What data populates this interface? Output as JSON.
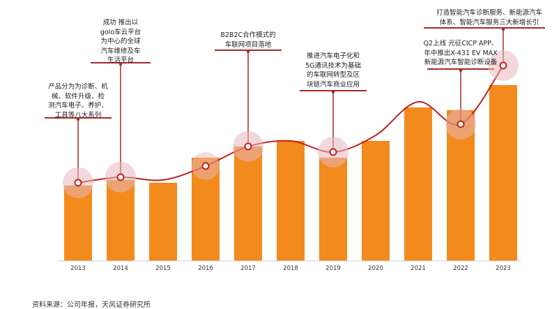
{
  "chart_data": {
    "type": "bar",
    "categories": [
      "2013",
      "2014",
      "2015",
      "2016",
      "2017",
      "2018",
      "2019",
      "2020",
      "2021",
      "2022",
      "2023"
    ],
    "values": [
      27,
      29,
      28,
      37,
      41,
      43,
      37,
      43,
      55,
      54,
      63
    ],
    "trend_line": [
      28,
      30,
      29,
      34,
      41,
      43,
      39,
      45,
      57,
      49,
      70
    ],
    "title": "",
    "xlabel": "",
    "ylabel": "",
    "ylim": [
      0,
      75
    ],
    "grid": false,
    "legend": "none",
    "annotations": [
      {
        "year": "2013",
        "text": "产品分为为诊断、机\n械、软件升级、检\n测汽车电子、养护、\n工具等八大系列"
      },
      {
        "year": "2014",
        "text": "成功   推出以\ngolo车云平台\n为中心的全球\n汽车维修及车\n生活平台"
      },
      {
        "year": "2017",
        "text": "B2B2C合作模式的\n车联网项目落地"
      },
      {
        "year": "2019",
        "text": "推进汽车电子化和\n5G通讯技术为基础\n的车联网转型及区\n块链汽车商业应用"
      },
      {
        "year": "2022",
        "text": "Q2上线 元征CICP APP、\n年中推出X-431 EV MAX\n新能源汽车智能诊断设备"
      },
      {
        "year": "2023",
        "text": "打造智能汽车诊断服务、新能源汽车\n体系、智能汽车服务三大新增长引"
      }
    ],
    "colors": {
      "bar": "#f28a1e",
      "line": "#c0211a",
      "marker_halo": "#e8b8bb",
      "leader": "#a52a2a"
    }
  },
  "source": "资料来源：公司年报，天风证券研究所"
}
